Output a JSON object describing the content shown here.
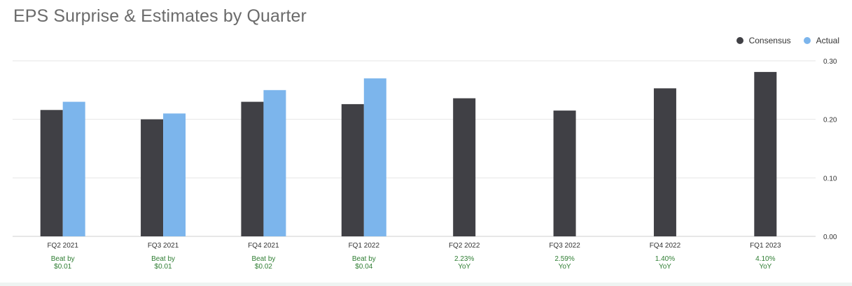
{
  "title": "EPS Surprise & Estimates by Quarter",
  "colors": {
    "consensus": "#404045",
    "actual": "#7cb5ec",
    "gridline": "#e6e6e6",
    "annotation": "#2e7d32",
    "axis_text": "#333333"
  },
  "chart_data": {
    "type": "bar",
    "title": "EPS Surprise & Estimates by Quarter",
    "categories": [
      "FQ2 2021",
      "FQ3 2021",
      "FQ4 2021",
      "FQ1 2022",
      "FQ2 2022",
      "FQ3 2022",
      "FQ4 2022",
      "FQ1 2023"
    ],
    "series": [
      {
        "name": "Consensus",
        "values": [
          0.216,
          0.2,
          0.23,
          0.226,
          0.236,
          0.215,
          0.253,
          0.281
        ]
      },
      {
        "name": "Actual",
        "values": [
          0.23,
          0.21,
          0.25,
          0.27,
          null,
          null,
          null,
          null
        ]
      }
    ],
    "annotations": [
      [
        "Beat by",
        "$0.01"
      ],
      [
        "Beat by",
        "$0.01"
      ],
      [
        "Beat by",
        "$0.02"
      ],
      [
        "Beat by",
        "$0.04"
      ],
      [
        "2.23%",
        "YoY"
      ],
      [
        "2.59%",
        "YoY"
      ],
      [
        "1.40%",
        "YoY"
      ],
      [
        "4.10%",
        "YoY"
      ]
    ],
    "yticks": [
      "0.00",
      "0.10",
      "0.20",
      "0.30"
    ],
    "ylim": [
      0,
      0.3
    ],
    "y_axis_side": "right",
    "grid": true,
    "legend_position": "top-right"
  }
}
